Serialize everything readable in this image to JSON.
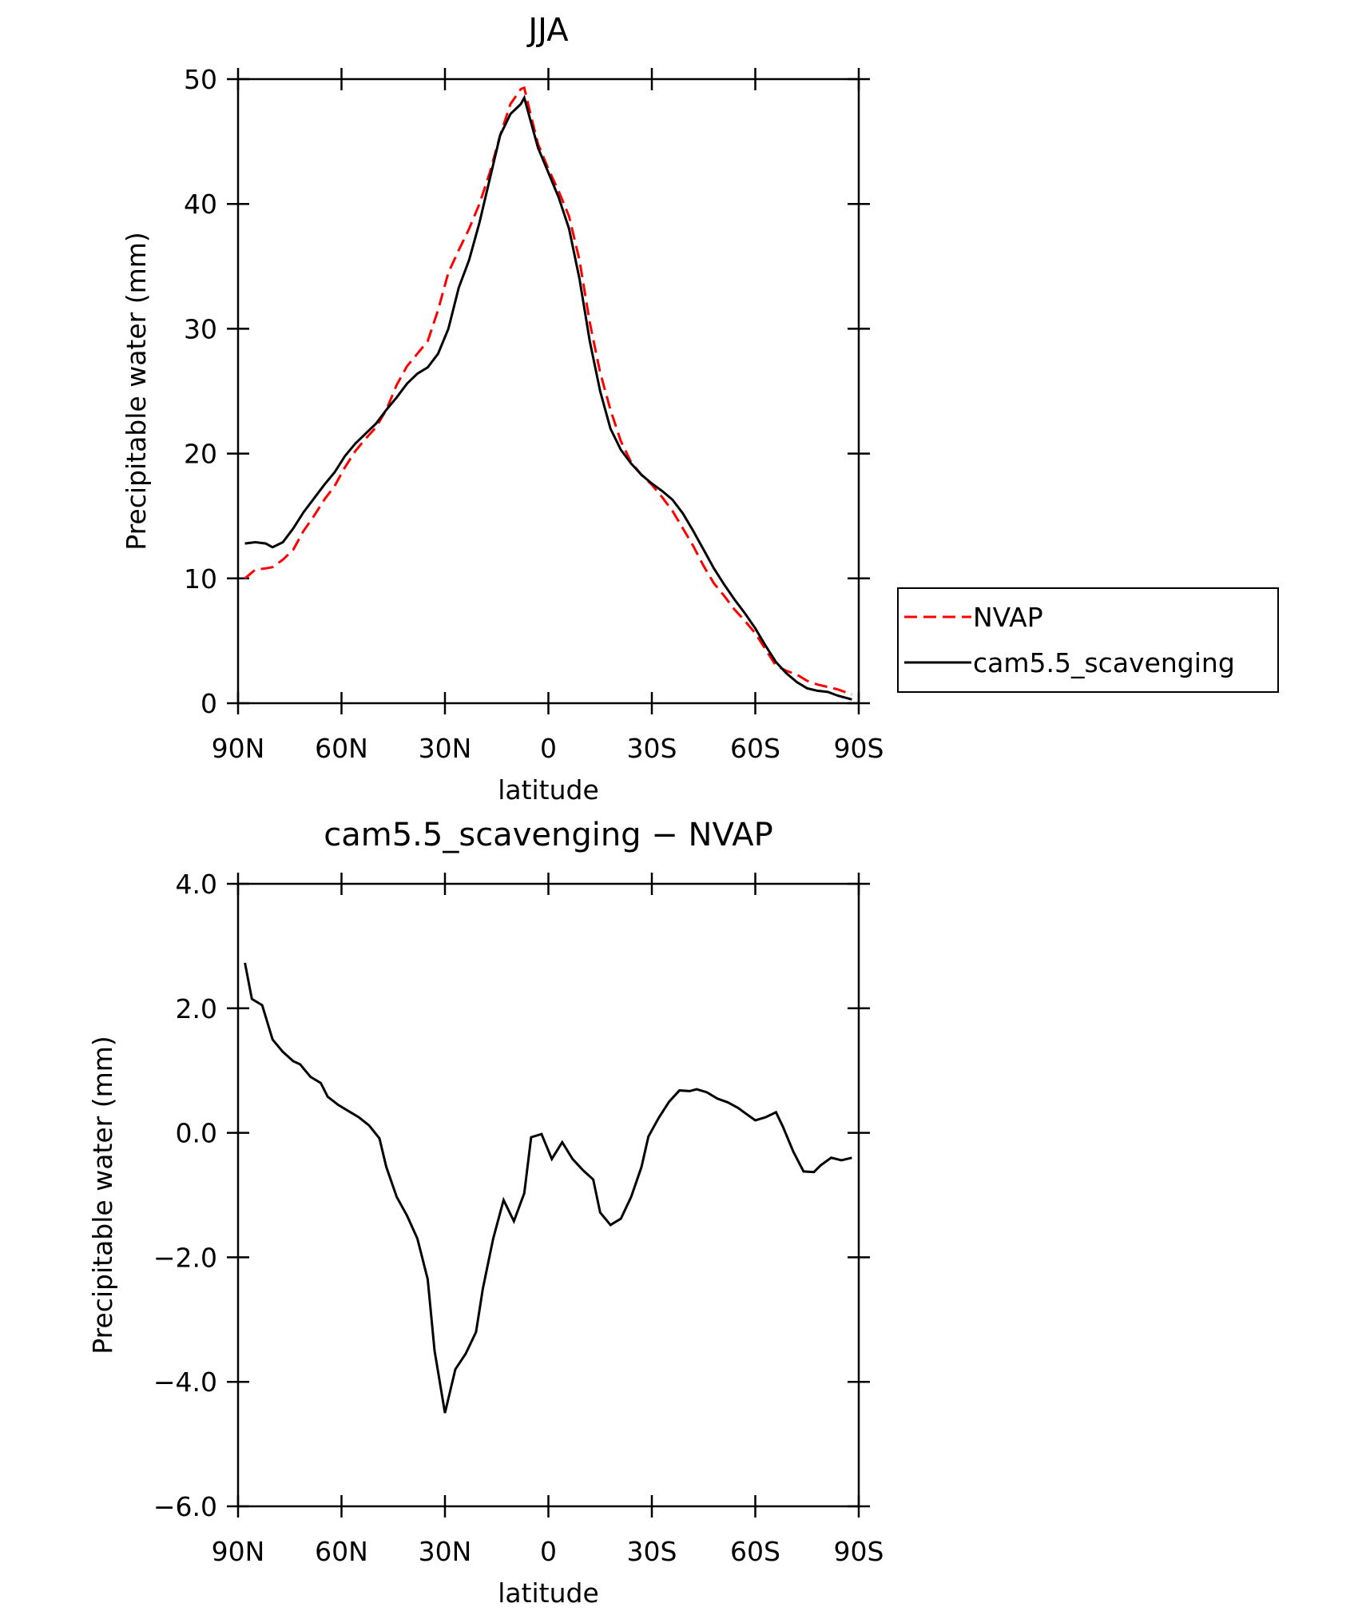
{
  "chart_data": [
    {
      "type": "line",
      "title": "JJA",
      "xlabel": "latitude",
      "ylabel": "Precipitable water (mm)",
      "x": [
        88,
        85,
        82,
        80,
        77,
        74,
        71,
        68,
        65,
        62,
        59,
        56,
        53,
        50,
        47,
        44,
        41,
        38,
        35,
        32,
        29,
        26,
        23,
        20,
        17,
        14,
        11,
        8,
        7,
        5,
        3,
        0,
        -3,
        -6,
        -9,
        -12,
        -15,
        -18,
        -21,
        -24,
        -27,
        -30,
        -33,
        -36,
        -39,
        -42,
        -45,
        -48,
        -51,
        -54,
        -57,
        -60,
        -63,
        -66,
        -69,
        -72,
        -75,
        -78,
        -81,
        -84,
        -88
      ],
      "series": [
        {
          "name": "NVAP",
          "color": "#ff0000",
          "dash": true,
          "values": [
            10.0,
            10.7,
            10.8,
            10.9,
            11.5,
            12.3,
            13.8,
            15.0,
            16.3,
            17.4,
            18.9,
            20.2,
            21.2,
            22.1,
            23.5,
            25.5,
            27.0,
            28.0,
            29.0,
            31.5,
            34.5,
            36.3,
            38.0,
            40.0,
            42.5,
            45.5,
            48.0,
            49.2,
            49.3,
            47.0,
            44.8,
            42.8,
            41.0,
            39.0,
            35.5,
            30.5,
            26.5,
            23.5,
            21.0,
            19.3,
            18.3,
            17.5,
            16.5,
            15.4,
            14.0,
            12.6,
            11.0,
            9.6,
            8.6,
            7.5,
            6.6,
            5.6,
            4.3,
            3.0,
            2.6,
            2.3,
            1.8,
            1.5,
            1.3,
            1.1,
            0.7
          ]
        },
        {
          "name": "cam5.5_scavenging",
          "color": "#000000",
          "dash": false,
          "values": [
            12.8,
            12.9,
            12.8,
            12.5,
            12.9,
            14.0,
            15.3,
            16.4,
            17.5,
            18.5,
            19.8,
            20.8,
            21.6,
            22.4,
            23.5,
            24.5,
            25.6,
            26.4,
            26.9,
            28.0,
            30.0,
            33.3,
            35.5,
            38.5,
            42.0,
            45.5,
            47.2,
            48.0,
            48.5,
            46.5,
            44.5,
            42.5,
            40.5,
            38.0,
            34.0,
            29.0,
            25.0,
            22.0,
            20.3,
            19.2,
            18.3,
            17.6,
            17.0,
            16.3,
            15.2,
            13.8,
            12.3,
            10.8,
            9.5,
            8.3,
            7.2,
            6.0,
            4.6,
            3.3,
            2.4,
            1.7,
            1.2,
            1.0,
            0.9,
            0.6,
            0.3
          ]
        }
      ],
      "xlim": [
        90,
        -90
      ],
      "xticks": [
        {
          "value": 90,
          "label": "90N"
        },
        {
          "value": 60,
          "label": "60N"
        },
        {
          "value": 30,
          "label": "30N"
        },
        0,
        {
          "value": -30,
          "label": "30S"
        },
        {
          "value": -60,
          "label": "60S"
        },
        {
          "value": -90,
          "label": "90S"
        }
      ],
      "ylim": [
        0,
        50
      ],
      "yticks": [
        0,
        10,
        20,
        30,
        40,
        50
      ],
      "legend": "right"
    },
    {
      "type": "line",
      "title": "cam5.5_scavenging − NVAP",
      "xlabel": "latitude",
      "ylabel": "Precipitable water (mm)",
      "x": [
        88,
        86,
        83,
        80,
        77,
        74,
        72,
        69,
        66,
        64,
        61,
        58,
        55,
        52,
        49,
        47,
        44,
        41,
        38,
        35,
        33,
        30,
        27,
        24,
        21,
        19,
        16,
        13,
        10,
        7,
        5,
        2,
        -1,
        -4,
        -7,
        -10,
        -13,
        -15,
        -18,
        -21,
        -24,
        -27,
        -29,
        -32,
        -35,
        -38,
        -41,
        -43,
        -46,
        -49,
        -52,
        -55,
        -57,
        -60,
        -63,
        -66,
        -68,
        -71,
        -74,
        -77,
        -79,
        -82,
        -85,
        -88
      ],
      "series": [
        {
          "name": "cam5.5_scavenging − NVAP",
          "color": "#000000",
          "dash": false,
          "values": [
            2.73,
            2.15,
            2.05,
            1.5,
            1.3,
            1.15,
            1.1,
            0.9,
            0.8,
            0.58,
            0.45,
            0.35,
            0.25,
            0.12,
            -0.09,
            -0.55,
            -1.03,
            -1.33,
            -1.7,
            -2.35,
            -3.5,
            -4.5,
            -3.8,
            -3.55,
            -3.2,
            -2.5,
            -1.7,
            -1.08,
            -1.42,
            -0.97,
            -0.07,
            -0.02,
            -0.42,
            -0.15,
            -0.42,
            -0.6,
            -0.75,
            -1.28,
            -1.48,
            -1.38,
            -1.03,
            -0.55,
            -0.06,
            0.24,
            0.5,
            0.68,
            0.67,
            0.7,
            0.65,
            0.55,
            0.49,
            0.4,
            0.32,
            0.2,
            0.25,
            0.33,
            0.1,
            -0.3,
            -0.62,
            -0.63,
            -0.52,
            -0.4,
            -0.44,
            -0.4
          ]
        }
      ],
      "xlim": [
        90,
        -90
      ],
      "xticks": [
        {
          "value": 90,
          "label": "90N"
        },
        {
          "value": 60,
          "label": "60N"
        },
        {
          "value": 30,
          "label": "30N"
        },
        0,
        {
          "value": -30,
          "label": "30S"
        },
        {
          "value": -60,
          "label": "60S"
        },
        {
          "value": -90,
          "label": "90S"
        }
      ],
      "ylim": [
        -6,
        4
      ],
      "yticks": [
        {
          "value": -6,
          "label": "−6.0"
        },
        {
          "value": -4,
          "label": "−4.0"
        },
        {
          "value": -2,
          "label": "−2.0"
        },
        {
          "value": 0,
          "label": "0.0"
        },
        {
          "value": 2,
          "label": "2.0"
        },
        {
          "value": 4,
          "label": "4.0"
        }
      ]
    }
  ]
}
